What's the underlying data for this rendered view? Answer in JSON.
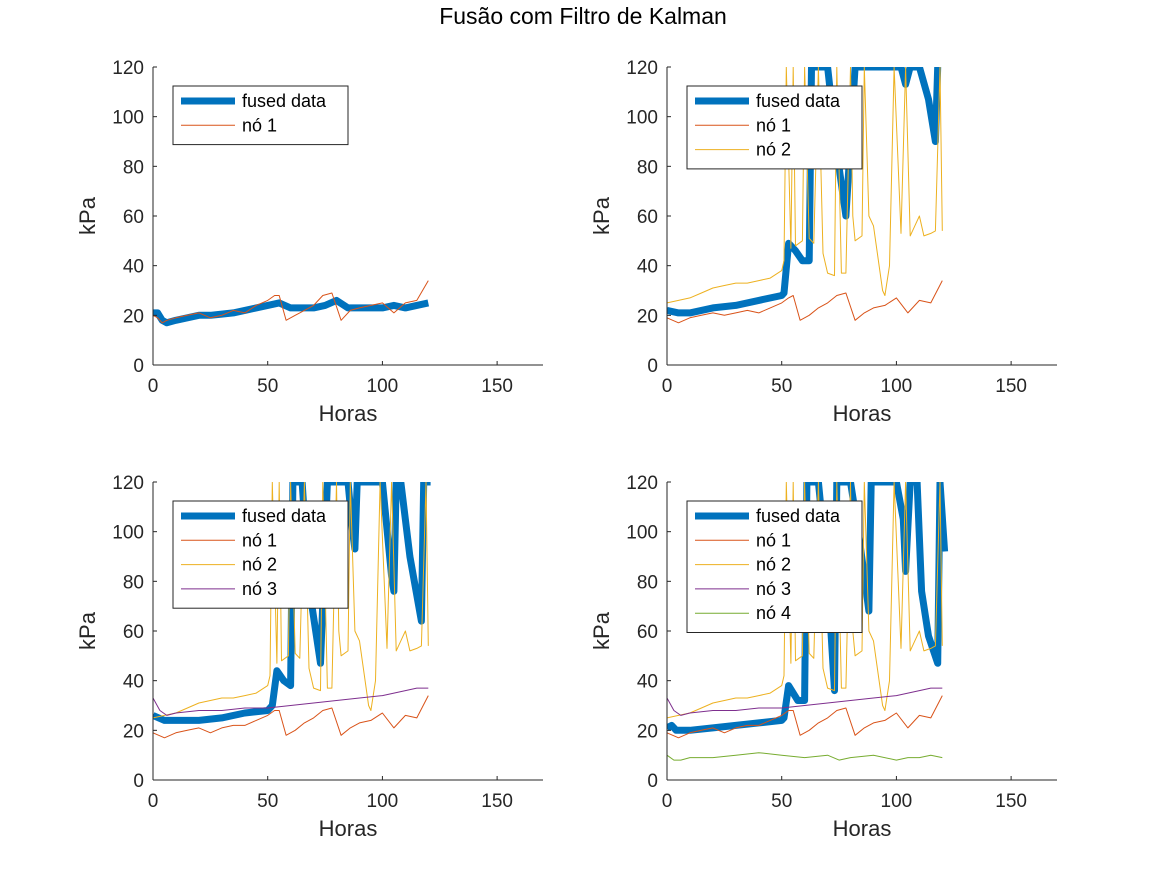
{
  "figure": {
    "title": "Fusão com Filtro de Kalman"
  },
  "colors": {
    "fused": "#0072BD",
    "n1": "#D95319",
    "n2": "#EDB120",
    "n3": "#7E2F8E",
    "n4": "#77AC30",
    "axis": "#262626"
  },
  "chart_data": [
    {
      "type": "line",
      "xlabel": "Horas",
      "ylabel": "kPa",
      "xlim": [
        0,
        170
      ],
      "ylim": [
        0,
        120
      ],
      "xticks": [
        0,
        50,
        100,
        150
      ],
      "yticks": [
        0,
        20,
        40,
        60,
        80,
        100,
        120
      ],
      "legend_position": "top-left",
      "series": [
        {
          "name": "fused data",
          "color_key": "fused",
          "width": 7,
          "x": [
            0,
            2,
            4,
            6,
            10,
            15,
            20,
            25,
            30,
            35,
            40,
            45,
            50,
            55,
            60,
            65,
            70,
            75,
            80,
            85,
            90,
            95,
            100,
            105,
            110,
            115,
            120
          ],
          "y": [
            21,
            21,
            18,
            17,
            18,
            19,
            20,
            20,
            20.5,
            21,
            22,
            23,
            24,
            25,
            23,
            23,
            23,
            24,
            26,
            23,
            23,
            23,
            23,
            24,
            23,
            24,
            25
          ]
        },
        {
          "name": "nó 1",
          "color_key": "n1",
          "width": 1,
          "x": [
            0,
            2,
            4,
            6,
            10,
            15,
            20,
            25,
            30,
            35,
            40,
            45,
            50,
            53,
            55,
            58,
            62,
            66,
            70,
            74,
            78,
            82,
            86,
            90,
            95,
            100,
            105,
            110,
            115,
            120
          ],
          "y": [
            20,
            19,
            17,
            18,
            19,
            20,
            21,
            19,
            20,
            22,
            21,
            24,
            26,
            28,
            28,
            18,
            20,
            22,
            24,
            28,
            29,
            18,
            22,
            23,
            24,
            25,
            21,
            25,
            26,
            34
          ]
        }
      ]
    },
    {
      "type": "line",
      "xlabel": "Horas",
      "ylabel": "kPa",
      "xlim": [
        0,
        170
      ],
      "ylim": [
        0,
        120
      ],
      "xticks": [
        0,
        50,
        100,
        150
      ],
      "yticks": [
        0,
        20,
        40,
        60,
        80,
        100,
        120
      ],
      "legend_position": "top-left",
      "series": [
        {
          "name": "fused data",
          "color_key": "fused",
          "width": 7,
          "x": [
            0,
            5,
            10,
            20,
            30,
            40,
            50,
            51,
            53,
            56,
            59,
            62,
            63,
            66,
            70,
            74,
            78,
            82,
            86,
            90,
            94,
            98,
            102,
            104,
            106,
            110,
            114,
            117,
            118,
            119
          ],
          "y": [
            22,
            21,
            21,
            23,
            24,
            26,
            28,
            29,
            49,
            46,
            42,
            42,
            120,
            120,
            120,
            86,
            60,
            120,
            120,
            120,
            120,
            120,
            120,
            113,
            120,
            120,
            107,
            90,
            120,
            120
          ]
        },
        {
          "name": "nó 1",
          "color_key": "n1",
          "width": 1,
          "x": [
            0,
            5,
            10,
            15,
            20,
            25,
            30,
            35,
            40,
            45,
            50,
            53,
            55,
            58,
            62,
            66,
            70,
            74,
            78,
            82,
            86,
            90,
            95,
            100,
            105,
            110,
            115,
            120
          ],
          "y": [
            19,
            17,
            19,
            20,
            21,
            20,
            21,
            22,
            21,
            23,
            25,
            27,
            28,
            18,
            20,
            23,
            25,
            28,
            29,
            18,
            21,
            23,
            24,
            27,
            21,
            26,
            25,
            34
          ]
        },
        {
          "name": "nó 2",
          "color_key": "n2",
          "width": 1,
          "x": [
            0,
            5,
            10,
            15,
            20,
            25,
            30,
            35,
            40,
            45,
            50,
            51,
            52,
            54,
            55,
            56,
            59,
            60,
            62,
            64,
            66,
            68,
            70,
            73,
            74,
            76,
            78,
            80,
            81,
            82,
            85,
            86,
            88,
            90,
            94,
            95,
            97,
            99,
            102,
            104,
            106,
            108,
            110,
            112,
            115,
            117,
            119,
            120
          ],
          "y": [
            25,
            26,
            27,
            29,
            31,
            32,
            33,
            33,
            34,
            35,
            38,
            42,
            120,
            47,
            120,
            48,
            50,
            120,
            51,
            49,
            120,
            45,
            37,
            36,
            120,
            37,
            37,
            120,
            60,
            50,
            52,
            120,
            60,
            56,
            30,
            28,
            40,
            120,
            53,
            120,
            52,
            56,
            60,
            52,
            53,
            54,
            120,
            54
          ]
        }
      ]
    },
    {
      "type": "line",
      "xlabel": "Horas",
      "ylabel": "kPa",
      "xlim": [
        0,
        170
      ],
      "ylim": [
        0,
        120
      ],
      "xticks": [
        0,
        50,
        100,
        150
      ],
      "yticks": [
        0,
        20,
        40,
        60,
        80,
        100,
        120
      ],
      "legend_position": "top-left",
      "series": [
        {
          "name": "fused data",
          "color_key": "fused",
          "width": 7,
          "x": [
            0,
            5,
            10,
            20,
            30,
            40,
            50,
            52,
            54,
            57,
            60,
            61,
            63,
            65,
            68,
            73,
            76,
            79,
            82,
            85,
            87,
            88,
            89,
            91,
            95,
            98,
            100,
            104,
            105,
            106,
            108,
            112,
            117,
            118,
            119,
            121
          ],
          "y": [
            26,
            24,
            24,
            24,
            25,
            27,
            28,
            30,
            44,
            40,
            38,
            120,
            120,
            120,
            78,
            47,
            120,
            120,
            120,
            120,
            100,
            93,
            120,
            120,
            120,
            120,
            120,
            82,
            76,
            120,
            120,
            90,
            64,
            120,
            120,
            120
          ]
        },
        {
          "name": "nó 1",
          "color_key": "n1",
          "width": 1,
          "x": [
            0,
            5,
            10,
            15,
            20,
            25,
            30,
            35,
            40,
            45,
            50,
            53,
            55,
            58,
            62,
            66,
            70,
            74,
            78,
            82,
            86,
            90,
            95,
            100,
            105,
            110,
            115,
            120
          ],
          "y": [
            19,
            17,
            19,
            20,
            21,
            19,
            21,
            22,
            22,
            24,
            26,
            28,
            28,
            18,
            20,
            23,
            25,
            28,
            29,
            18,
            21,
            23,
            24,
            27,
            21,
            26,
            25,
            34
          ]
        },
        {
          "name": "nó 2",
          "color_key": "n2",
          "width": 1,
          "x": [
            0,
            5,
            10,
            15,
            20,
            25,
            30,
            35,
            40,
            45,
            50,
            51,
            52,
            54,
            55,
            56,
            59,
            60,
            62,
            64,
            66,
            68,
            70,
            73,
            74,
            76,
            78,
            80,
            81,
            82,
            85,
            86,
            88,
            90,
            94,
            95,
            97,
            99,
            102,
            104,
            106,
            108,
            110,
            112,
            115,
            117,
            119,
            120
          ],
          "y": [
            25,
            26,
            27,
            29,
            31,
            32,
            33,
            33,
            34,
            35,
            38,
            42,
            120,
            47,
            120,
            48,
            50,
            120,
            51,
            49,
            120,
            45,
            37,
            36,
            120,
            37,
            37,
            120,
            60,
            50,
            52,
            120,
            60,
            56,
            30,
            28,
            40,
            120,
            53,
            120,
            52,
            56,
            60,
            52,
            53,
            54,
            120,
            54
          ]
        },
        {
          "name": "nó 3",
          "color_key": "n3",
          "width": 1,
          "x": [
            0,
            3,
            6,
            10,
            20,
            30,
            40,
            50,
            60,
            70,
            80,
            90,
            100,
            110,
            115,
            120
          ],
          "y": [
            33,
            28,
            26,
            27,
            28,
            28,
            29,
            29,
            30,
            31,
            32,
            33,
            34,
            36,
            37,
            37
          ]
        }
      ]
    },
    {
      "type": "line",
      "xlabel": "Horas",
      "ylabel": "kPa",
      "xlim": [
        0,
        170
      ],
      "ylim": [
        0,
        120
      ],
      "xticks": [
        0,
        50,
        100,
        150
      ],
      "yticks": [
        0,
        20,
        40,
        60,
        80,
        100,
        120
      ],
      "legend_position": "top-left",
      "series": [
        {
          "name": "fused data",
          "color_key": "fused",
          "width": 7,
          "x": [
            0,
            2,
            4,
            10,
            20,
            30,
            40,
            50,
            51,
            53,
            57,
            60,
            61,
            63,
            66,
            70,
            73,
            74,
            76,
            78,
            80,
            84,
            88,
            89,
            90,
            92,
            95,
            98,
            100,
            103,
            104,
            106,
            109,
            111,
            114,
            118,
            119,
            121
          ],
          "y": [
            21,
            22,
            20,
            20,
            21,
            22,
            23,
            24,
            25,
            38,
            32,
            32,
            120,
            120,
            120,
            82,
            36,
            120,
            120,
            120,
            120,
            96,
            68,
            120,
            120,
            120,
            120,
            120,
            120,
            105,
            84,
            120,
            120,
            76,
            58,
            47,
            120,
            92
          ]
        },
        {
          "name": "nó 1",
          "color_key": "n1",
          "width": 1,
          "x": [
            0,
            5,
            10,
            15,
            20,
            25,
            30,
            35,
            40,
            45,
            50,
            53,
            55,
            58,
            62,
            66,
            70,
            74,
            78,
            82,
            86,
            90,
            95,
            100,
            105,
            110,
            115,
            120
          ],
          "y": [
            19,
            17,
            19,
            20,
            21,
            19,
            21,
            22,
            22,
            24,
            26,
            28,
            28,
            18,
            20,
            23,
            25,
            28,
            29,
            18,
            21,
            23,
            24,
            27,
            21,
            26,
            25,
            34
          ]
        },
        {
          "name": "nó 2",
          "color_key": "n2",
          "width": 1,
          "x": [
            0,
            5,
            10,
            15,
            20,
            25,
            30,
            35,
            40,
            45,
            50,
            51,
            52,
            54,
            55,
            56,
            59,
            60,
            62,
            64,
            66,
            68,
            70,
            73,
            74,
            76,
            78,
            80,
            81,
            82,
            85,
            86,
            88,
            90,
            94,
            95,
            97,
            99,
            102,
            104,
            106,
            108,
            110,
            112,
            115,
            117,
            119,
            120
          ],
          "y": [
            25,
            26,
            27,
            29,
            31,
            32,
            33,
            33,
            34,
            35,
            38,
            42,
            120,
            47,
            120,
            48,
            50,
            120,
            51,
            49,
            120,
            45,
            37,
            36,
            120,
            37,
            37,
            120,
            60,
            50,
            52,
            120,
            60,
            56,
            30,
            28,
            40,
            120,
            53,
            120,
            52,
            56,
            60,
            52,
            53,
            54,
            120,
            54
          ]
        },
        {
          "name": "nó 3",
          "color_key": "n3",
          "width": 1,
          "x": [
            0,
            3,
            6,
            10,
            20,
            30,
            40,
            50,
            60,
            70,
            80,
            90,
            100,
            110,
            115,
            120
          ],
          "y": [
            33,
            28,
            26,
            27,
            28,
            28,
            29,
            29,
            30,
            31,
            32,
            33,
            34,
            36,
            37,
            37
          ]
        },
        {
          "name": "nó 4",
          "color_key": "n4",
          "width": 1,
          "x": [
            0,
            3,
            6,
            10,
            20,
            30,
            40,
            50,
            60,
            70,
            75,
            80,
            90,
            100,
            105,
            110,
            115,
            120
          ],
          "y": [
            10,
            8,
            8,
            9,
            9,
            10,
            11,
            10,
            9,
            10,
            8,
            9,
            10,
            8,
            9,
            9,
            10,
            9
          ]
        }
      ]
    }
  ]
}
